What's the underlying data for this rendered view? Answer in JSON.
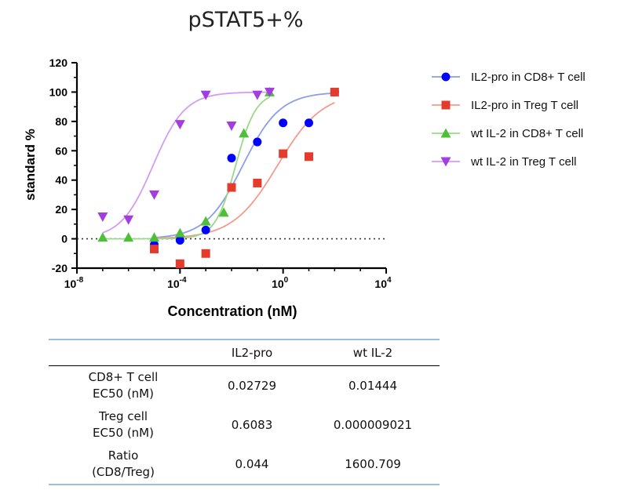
{
  "chart_data": {
    "type": "scatter",
    "title": "pSTAT5+%",
    "xlabel": "Concentration (nM)",
    "ylabel": "standard %",
    "x_scale": "log",
    "xlim": [
      1e-08,
      10000
    ],
    "ylim": [
      -20,
      120
    ],
    "x_ticks": [
      {
        "value": 1e-08,
        "base": "10",
        "exp": "-8"
      },
      {
        "value": 0.0001,
        "base": "10",
        "exp": "-4"
      },
      {
        "value": 1,
        "base": "10",
        "exp": "0"
      },
      {
        "value": 10000,
        "base": "10",
        "exp": "4"
      }
    ],
    "y_ticks": [
      "-20",
      "0",
      "20",
      "40",
      "60",
      "80",
      "100",
      "120"
    ],
    "reference_line": {
      "y": 0,
      "style": "dotted"
    },
    "legend_position": "right",
    "series": [
      {
        "name": "IL2-pro in CD8+ T cell",
        "marker": "circle",
        "color": "#0000ff",
        "curve_color": "#8a9fe6",
        "points": [
          [
            1e-05,
            -4
          ],
          [
            0.0001,
            -1
          ],
          [
            0.001,
            6
          ],
          [
            0.01,
            55
          ],
          [
            0.1,
            66
          ],
          [
            1,
            79
          ],
          [
            10,
            79
          ],
          [
            100,
            100
          ]
        ],
        "fit": {
          "bottom": 0,
          "top": 100,
          "ec50": 0.02729,
          "hill": 0.6
        }
      },
      {
        "name": "IL2-pro in Treg T cell",
        "marker": "square",
        "color": "#e53b2c",
        "curve_color": "#f29b8c",
        "points": [
          [
            1e-05,
            -7
          ],
          [
            0.0001,
            -17
          ],
          [
            0.001,
            -10
          ],
          [
            0.01,
            35
          ],
          [
            0.1,
            38
          ],
          [
            1,
            58
          ],
          [
            10,
            56
          ],
          [
            100,
            100
          ]
        ],
        "fit": {
          "bottom": 0,
          "top": 100,
          "ec50": 0.6083,
          "hill": 0.5
        }
      },
      {
        "name": "wt IL-2 in CD8+ T cell",
        "marker": "triangle-up",
        "color": "#4fbf3a",
        "curve_color": "#9ad88b",
        "points": [
          [
            1e-07,
            1
          ],
          [
            1e-06,
            1
          ],
          [
            1e-05,
            1
          ],
          [
            0.0001,
            4
          ],
          [
            0.001,
            12
          ],
          [
            0.005,
            18
          ],
          [
            0.03,
            72
          ],
          [
            0.3,
            100
          ]
        ],
        "fit": {
          "bottom": 0,
          "top": 100,
          "ec50": 0.01444,
          "hill": 1.1
        }
      },
      {
        "name": "wt IL-2 in Treg T cell",
        "marker": "triangle-down",
        "color": "#a43de0",
        "curve_color": "#d49cee",
        "points": [
          [
            1e-07,
            15
          ],
          [
            1e-06,
            13
          ],
          [
            1e-05,
            30
          ],
          [
            0.0001,
            78
          ],
          [
            0.001,
            98
          ],
          [
            0.01,
            77
          ],
          [
            0.1,
            98
          ],
          [
            0.3,
            100
          ]
        ],
        "fit": {
          "bottom": 0,
          "top": 100,
          "ec50": 9.021e-06,
          "hill": 0.7
        }
      }
    ],
    "table": {
      "headers": [
        "",
        "IL2-pro",
        "wt IL-2"
      ],
      "rows": [
        {
          "label_line1": "CD8+ T cell",
          "label_line2": "EC50 (nM)",
          "values": [
            "0.02729",
            "0.01444"
          ]
        },
        {
          "label_line1": "Treg cell",
          "label_line2": "EC50 (nM)",
          "values": [
            "0.6083",
            "0.000009021"
          ]
        },
        {
          "label_line1": "Ratio",
          "label_line2": "(CD8/Treg)",
          "values": [
            "0.044",
            "1600.709"
          ]
        }
      ]
    }
  }
}
